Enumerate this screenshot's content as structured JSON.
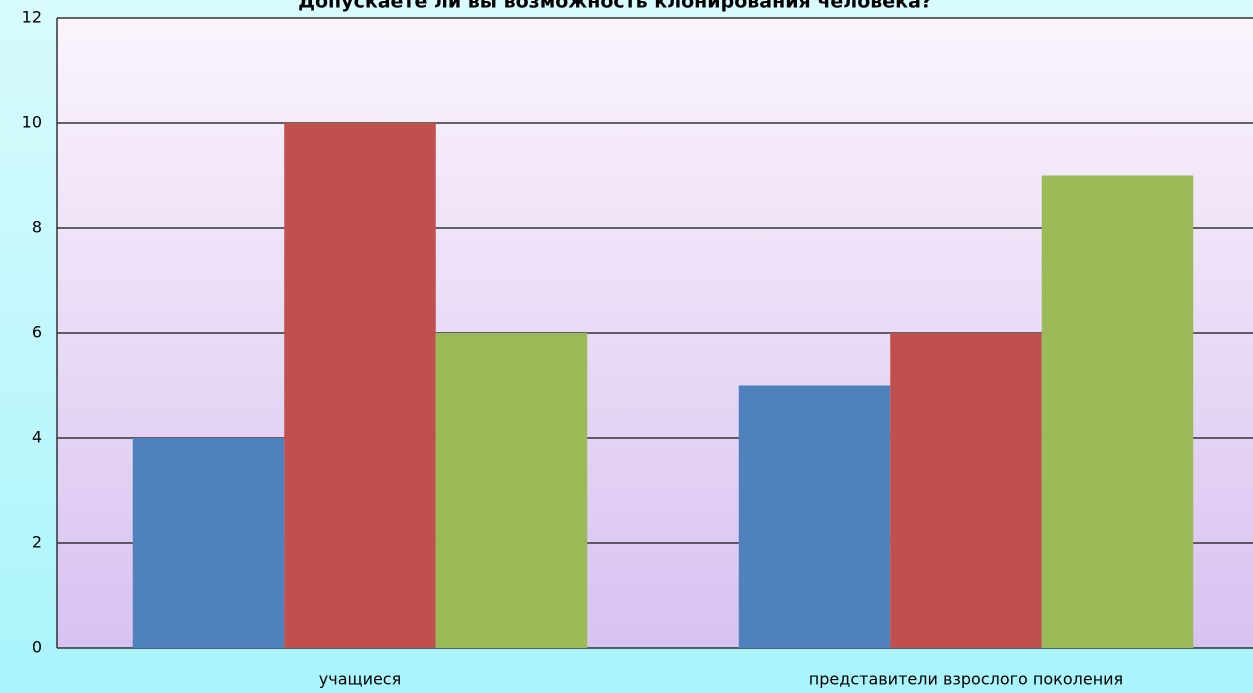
{
  "chart_data": {
    "type": "bar",
    "title": "Допускаете ли вы возможность клонирования человека?",
    "categories": [
      "учащиеся",
      "представители взрослого поколения"
    ],
    "series": [
      {
        "color": "#4f81bd",
        "values": [
          4,
          5
        ]
      },
      {
        "color": "#c0504d",
        "values": [
          10,
          6
        ]
      },
      {
        "color": "#9bbb59",
        "values": [
          6,
          9
        ]
      }
    ],
    "ylim": [
      0,
      12
    ],
    "yticks": [
      0,
      2,
      4,
      6,
      8,
      10,
      12
    ],
    "grid": true
  }
}
